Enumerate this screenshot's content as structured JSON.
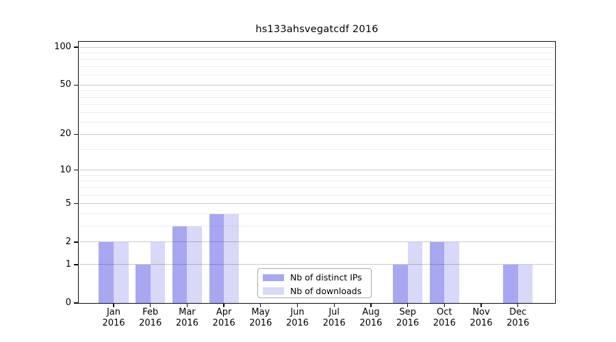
{
  "title": "hs133ahsvegatcdf 2016",
  "colors": {
    "distinct_ips_bar": "#a7a7f2",
    "downloads_bar": "#d8d8f8",
    "major_gridline": "rgba(40,40,40,0.25)",
    "minor_gridline": "rgba(100,100,100,0.12)",
    "axis_spine": "#0a0a0a",
    "legend_border": "#a9a9a9",
    "background": "#ffffff"
  },
  "legend": {
    "items": [
      {
        "label": "Nb of distinct IPs",
        "swatch_color": "#a7a7f2"
      },
      {
        "label": "Nb of downloads",
        "swatch_color": "#d8d8f8"
      }
    ]
  },
  "chart_data": {
    "type": "bar",
    "title": "hs133ahsvegatcdf 2016",
    "categories": [
      "Jan 2016",
      "Feb 2016",
      "Mar 2016",
      "Apr 2016",
      "May 2016",
      "Jun 2016",
      "Jul 2016",
      "Aug 2016",
      "Sep 2016",
      "Oct 2016",
      "Nov 2016",
      "Dec 2016"
    ],
    "series": [
      {
        "name": "Nb of distinct IPs",
        "color": "#a7a7f2",
        "values": [
          2,
          1,
          3,
          4,
          0,
          0,
          0,
          0,
          1,
          2,
          0,
          1
        ]
      },
      {
        "name": "Nb of downloads",
        "color": "#d8d8f8",
        "values": [
          2,
          2,
          3,
          4,
          0,
          0,
          0,
          0,
          2,
          2,
          0,
          1
        ]
      }
    ],
    "y_axis": {
      "scale": "log2(value+1)",
      "major_ticks": [
        0,
        1,
        2,
        5,
        10,
        20,
        50,
        100
      ],
      "minor_gridlines": [
        3,
        4,
        6,
        7,
        8,
        9,
        15,
        25,
        30,
        35,
        40,
        45,
        60,
        70,
        80,
        90
      ],
      "range": [
        0,
        110
      ]
    },
    "xlabel": "",
    "ylabel": "",
    "grid": true,
    "legend_position": "lower center"
  }
}
